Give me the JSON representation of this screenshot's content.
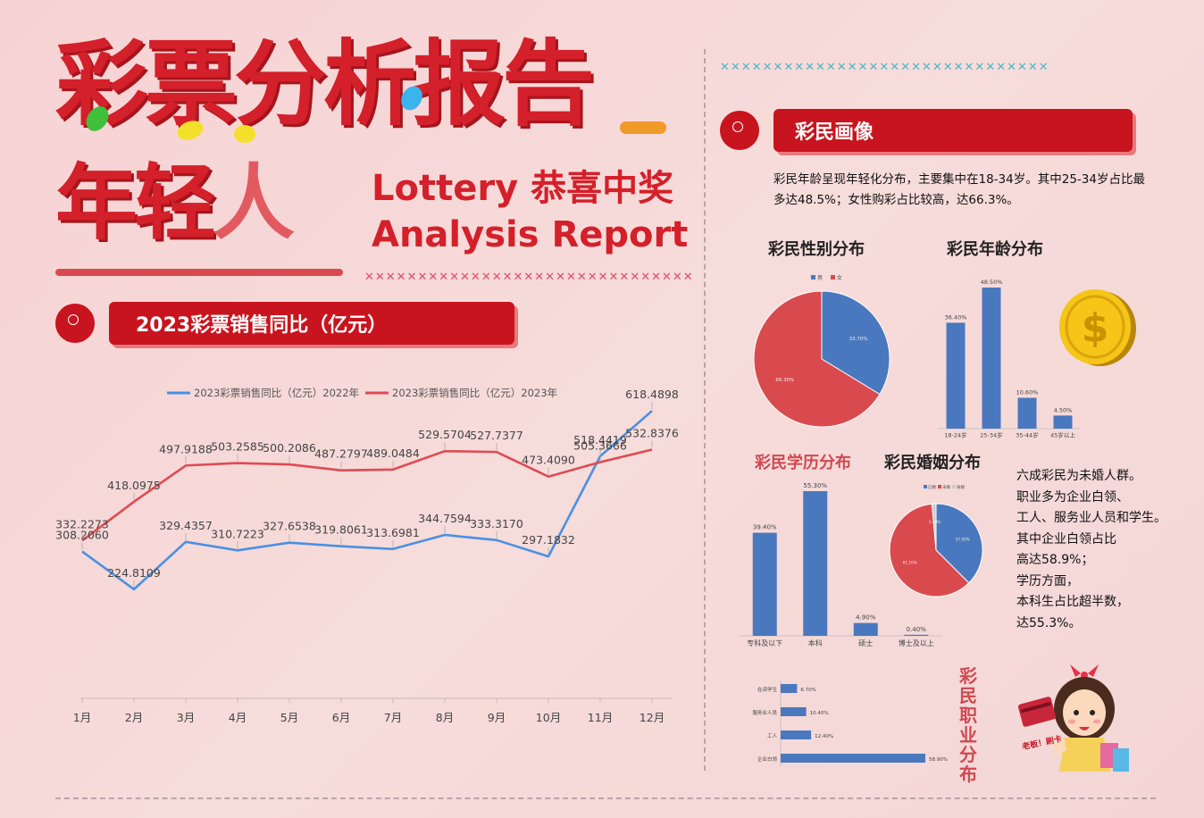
{
  "header": {
    "title": "彩票分析报告",
    "subtitle_a": "年轻",
    "subtitle_b": "人",
    "en_line1": "Lottery 恭喜中奖",
    "en_line2": "Analysis Report"
  },
  "colors": {
    "red": "#c8141e",
    "blue": "#4a78be",
    "line_blue": "#4a90e2",
    "line_red": "#e04a52"
  },
  "decor": {
    "x_row": "✕✕✕✕✕✕✕✕✕✕✕✕✕✕✕✕✕✕✕✕✕✕✕✕✕✕✕✕✕✕✕"
  },
  "left": {
    "section_title": "2023彩票销售同比（亿元）"
  },
  "right": {
    "section_title": "彩民画像",
    "description": "彩民年龄呈现年轻化分布，主要集中在18-34岁。其中25-34岁占比最多达48.5%；女性购彩占比较高，达66.3%。",
    "gender_title": "彩民性别分布",
    "age_title": "彩民年龄分布",
    "edu_title": "彩民学历分布",
    "marriage_title": "彩民婚姻分布",
    "job_title": "彩民职业分布",
    "side_lines": [
      "六成彩民为未婚人群。",
      "职业多为企业白领、",
      "工人、服务业人员和学生。",
      "其中企业白领占比",
      "高达58.9%；",
      "学历方面，",
      "本科生占比超半数，",
      "达55.3%。"
    ],
    "sticker_text": "老板！刷卡"
  },
  "chart_data": [
    {
      "type": "line",
      "categories": [
        "1月",
        "2月",
        "3月",
        "4月",
        "5月",
        "6月",
        "7月",
        "8月",
        "9月",
        "10月",
        "11月",
        "12月"
      ],
      "series": [
        {
          "name": "2023彩票销售同比（亿元）2022年",
          "values": [
            308.206,
            224.8109,
            329.4357,
            310.7223,
            327.6538,
            319.8061,
            313.6981,
            344.7594,
            333.317,
            297.1832,
            518.4419,
            618.4898
          ],
          "labels": [
            "308.2060",
            "224.8109",
            "329.4357",
            "310.7223",
            "327.6538",
            "319.8061",
            "313.6981",
            "344.7594",
            "333.3170",
            "297.1832",
            "518.4419",
            "618.4898"
          ]
        },
        {
          "name": "2023彩票销售同比（亿元）2023年",
          "values": [
            332.2273,
            418.0975,
            497.9188,
            503.2585,
            500.2086,
            487.2797,
            489.0484,
            529.5704,
            527.7377,
            473.409,
            505.3666,
            532.8376
          ],
          "labels": [
            "332.2273",
            "418.0975",
            "497.9188",
            "503.2585",
            "500.2086",
            "487.2797",
            "489.0484",
            "529.5704",
            "527.7377",
            "473.4090",
            "505.3666",
            "532.8376"
          ]
        }
      ]
    },
    {
      "type": "pie",
      "legend": [
        "男",
        "女"
      ],
      "values": [
        33.7,
        66.3
      ],
      "labels": [
        "33.70%",
        "66.30%"
      ]
    },
    {
      "type": "bar",
      "categories": [
        "18-24岁",
        "25-34岁",
        "35-44岁",
        "45岁以上"
      ],
      "values": [
        36.4,
        48.5,
        10.6,
        4.5
      ],
      "labels": [
        "36.40%",
        "48.50%",
        "10.60%",
        "4.50%"
      ]
    },
    {
      "type": "bar",
      "categories": [
        "专科及以下",
        "本科",
        "硕士",
        "博士及以上"
      ],
      "values": [
        39.4,
        55.3,
        4.9,
        0.4
      ],
      "labels": [
        "39.40%",
        "55.30%",
        "4.90%",
        "0.40%"
      ]
    },
    {
      "type": "pie",
      "legend": [
        "已婚",
        "未婚",
        "离婚"
      ],
      "values": [
        37.5,
        61.1,
        1.4
      ],
      "labels": [
        "37.50%",
        "61.10%",
        "1.40%"
      ]
    },
    {
      "type": "bar",
      "orientation": "horizontal",
      "categories": [
        "企业白领",
        "工人",
        "服务业人员",
        "在读学生"
      ],
      "values": [
        58.9,
        12.4,
        10.4,
        6.7
      ],
      "labels": [
        "58.90%",
        "12.40%",
        "10.40%",
        "6.70%"
      ]
    }
  ]
}
